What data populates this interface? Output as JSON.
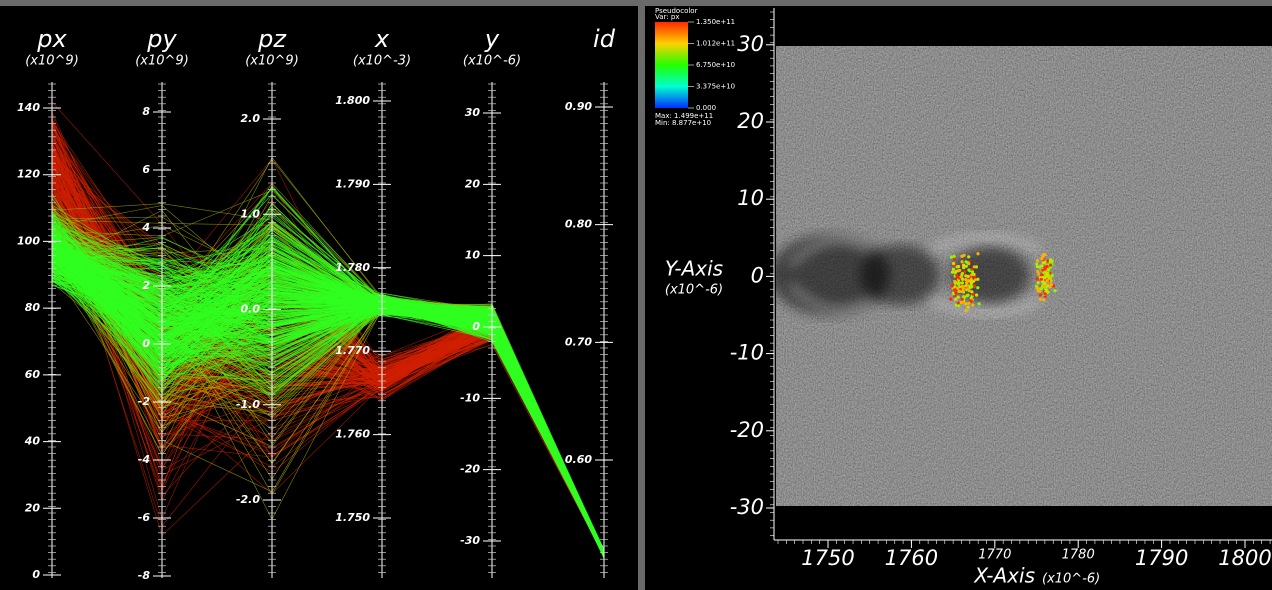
{
  "parallel_coordinates": {
    "axes": [
      {
        "name": "px",
        "scale": "(x10^9)",
        "ticks": [
          "0",
          "20",
          "40",
          "60",
          "80",
          "100",
          "120",
          "140"
        ]
      },
      {
        "name": "py",
        "scale": "(x10^9)",
        "ticks": [
          "-8",
          "-6",
          "-4",
          "-2",
          "0",
          "2",
          "4",
          "6",
          "8"
        ]
      },
      {
        "name": "pz",
        "scale": "(x10^9)",
        "ticks": [
          "-2.0",
          "-1.0",
          "0.0",
          "1.0",
          "2.0"
        ]
      },
      {
        "name": "x",
        "scale": "(x10^-3)",
        "ticks": [
          "1.750",
          "1.760",
          "1.770",
          "1.780",
          "1.790",
          "1.800"
        ]
      },
      {
        "name": "y",
        "scale": "(x10^-6)",
        "ticks": [
          "-30",
          "-20",
          "-10",
          "0",
          "10",
          "20",
          "30"
        ]
      },
      {
        "name": "id",
        "scale": "",
        "ticks": [
          "0.60",
          "0.70",
          "0.80",
          "0.90"
        ]
      }
    ]
  },
  "pseudocolor": {
    "legend": {
      "title": "Pseudocolor",
      "variable": "Var: px",
      "levels": [
        "1.350e+11",
        "1.012e+11",
        "6.750e+10",
        "3.375e+10",
        "0.000"
      ],
      "max": "Max: 1.499e+11",
      "min": "Min: 8.877e+10"
    },
    "y_axis": {
      "title": "Y-Axis",
      "scale": "(x10^-6)",
      "ticks": [
        "-30",
        "-20",
        "-10",
        "0",
        "10",
        "20",
        "30"
      ]
    },
    "x_axis": {
      "title": "X-Axis",
      "scale": "(x10^-6)",
      "ticks": [
        "1750",
        "1760",
        "1770",
        "1780",
        "1790",
        "1800"
      ]
    }
  }
}
